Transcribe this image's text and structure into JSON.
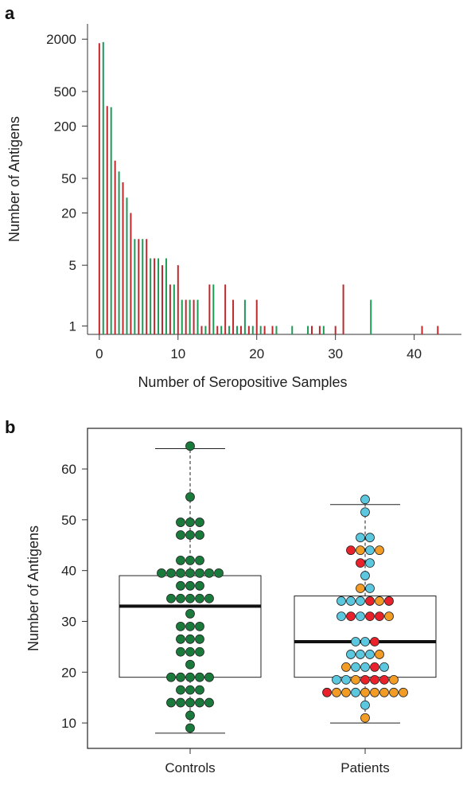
{
  "panels": {
    "a": {
      "letter": "a"
    },
    "b": {
      "letter": "b"
    }
  },
  "colors": {
    "controls": "#c0292b",
    "patients": "#1e9a57",
    "box_line": "#222222"
  },
  "chart_data": [
    {
      "type": "bar",
      "scale": "log",
      "xlabel": "Number of Seropositive Samples",
      "ylabel": "Number of Antigens",
      "xlim": [
        -1.5,
        46
      ],
      "ylim": [
        0.8,
        3000
      ],
      "xticks": [
        0,
        10,
        20,
        30,
        40
      ],
      "yticks": [
        1,
        5,
        20,
        50,
        200,
        500,
        2000
      ],
      "series": [
        {
          "color": "#c0292b",
          "x": [
            0,
            1,
            2,
            3,
            4,
            5,
            6,
            7,
            8,
            9,
            10,
            11,
            12,
            13,
            14,
            15,
            16,
            17,
            18,
            19,
            20,
            21,
            22,
            27,
            28,
            30,
            31,
            41,
            43
          ],
          "y": [
            1800,
            340,
            80,
            45,
            20,
            10,
            10,
            6,
            5,
            3,
            5,
            2,
            2,
            1,
            3,
            1,
            3,
            2,
            1,
            1,
            2,
            1,
            1,
            1,
            1,
            1,
            3,
            1,
            1
          ]
        },
        {
          "color": "#1e9a57",
          "x": [
            0.5,
            1.5,
            2.5,
            3.5,
            4.5,
            5.5,
            6.5,
            7.5,
            8.5,
            9.5,
            10.5,
            11.5,
            12.5,
            13.5,
            14.5,
            15.5,
            16.5,
            17.5,
            18.5,
            19.5,
            20.5,
            22.5,
            24.5,
            26.5,
            28.5,
            34.5
          ],
          "y": [
            1850,
            330,
            60,
            30,
            10,
            10,
            6,
            6,
            6,
            3,
            2,
            2,
            2,
            1,
            3,
            1,
            1,
            1,
            2,
            1,
            1,
            1,
            1,
            1,
            1,
            2
          ]
        }
      ]
    },
    {
      "type": "box",
      "xlabel": "",
      "ylabel": "Number of Antigens",
      "categories": [
        "Controls",
        "Patients"
      ],
      "ylim": [
        5,
        68
      ],
      "yticks": [
        10,
        20,
        30,
        40,
        50,
        60
      ],
      "boxes": [
        {
          "name": "Controls",
          "whisker_low": 8,
          "q1": 19,
          "median": 33,
          "q3": 39,
          "whisker_high": 64
        },
        {
          "name": "Patients",
          "whisker_low": 10,
          "q1": 19,
          "median": 26,
          "q3": 35,
          "whisker_high": 53
        }
      ],
      "points": [
        {
          "group": "Controls",
          "color": "#1a7a3c",
          "rows": [
            [
              9,
              1
            ],
            [
              11.5,
              1
            ],
            [
              14,
              5
            ],
            [
              16.5,
              3
            ],
            [
              19,
              5
            ],
            [
              21.5,
              1
            ],
            [
              24,
              3
            ],
            [
              26.5,
              3
            ],
            [
              29,
              3
            ],
            [
              31.5,
              1
            ],
            [
              34.5,
              5
            ],
            [
              37,
              3
            ],
            [
              39.5,
              7
            ],
            [
              42,
              3
            ],
            [
              47,
              3
            ],
            [
              49.5,
              3
            ],
            [
              54.5,
              1
            ],
            [
              64.5,
              1
            ]
          ]
        },
        {
          "group": "Patients",
          "rows": [
            {
              "y": 11,
              "colors": [
                "#f39c25"
              ]
            },
            {
              "y": 13.5,
              "colors": [
                "#5bc8df"
              ]
            },
            {
              "y": 16,
              "colors": [
                "#e8212a",
                "#f39c25",
                "#f39c25",
                "#5bc8df",
                "#f39c25",
                "#f39c25",
                "#f39c25",
                "#f39c25",
                "#f39c25"
              ]
            },
            {
              "y": 18.5,
              "colors": [
                "#5bc8df",
                "#5bc8df",
                "#f39c25",
                "#e8212a",
                "#e8212a",
                "#e8212a",
                "#f39c25"
              ]
            },
            {
              "y": 21,
              "colors": [
                "#f39c25",
                "#5bc8df",
                "#5bc8df",
                "#e8212a",
                "#5bc8df"
              ]
            },
            {
              "y": 23.5,
              "colors": [
                "#5bc8df",
                "#5bc8df",
                "#5bc8df",
                "#f39c25"
              ]
            },
            {
              "y": 26,
              "colors": [
                "#5bc8df",
                "#5bc8df",
                "#e8212a"
              ]
            },
            {
              "y": 31,
              "colors": [
                "#5bc8df",
                "#e8212a",
                "#5bc8df",
                "#e8212a",
                "#e8212a",
                "#f39c25"
              ]
            },
            {
              "y": 34,
              "colors": [
                "#5bc8df",
                "#5bc8df",
                "#5bc8df",
                "#e8212a",
                "#f39c25",
                "#e8212a"
              ]
            },
            {
              "y": 36.5,
              "colors": [
                "#f39c25",
                "#5bc8df"
              ]
            },
            {
              "y": 39,
              "colors": [
                "#5bc8df"
              ]
            },
            {
              "y": 41.5,
              "colors": [
                "#e8212a",
                "#5bc8df"
              ]
            },
            {
              "y": 44,
              "colors": [
                "#e8212a",
                "#f39c25",
                "#5bc8df",
                "#f39c25"
              ]
            },
            {
              "y": 46.5,
              "colors": [
                "#5bc8df",
                "#5bc8df"
              ]
            },
            {
              "y": 51.5,
              "colors": [
                "#5bc8df"
              ]
            },
            {
              "y": 54,
              "colors": [
                "#5bc8df"
              ]
            }
          ]
        }
      ]
    }
  ]
}
